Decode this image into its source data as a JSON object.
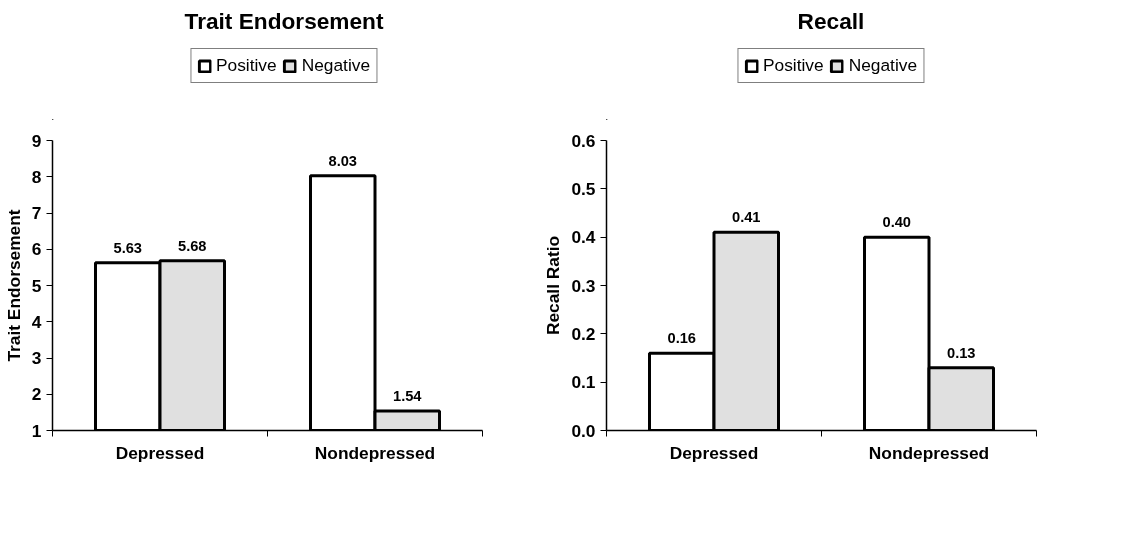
{
  "chart_data": [
    {
      "type": "bar",
      "title": "Trait Endorsement",
      "ylabel": "Trait Endorsement",
      "categories": [
        "Depressed",
        "Nondepressed"
      ],
      "ylim": [
        1,
        9
      ],
      "yticks": [
        1,
        2,
        3,
        4,
        5,
        6,
        7,
        8,
        9
      ],
      "grid": false,
      "legend": "top",
      "series": [
        {
          "name": "Positive",
          "color": "#ffffff",
          "values": [
            5.63,
            8.03
          ],
          "value_labels": [
            "5.63",
            "8.03"
          ]
        },
        {
          "name": "Negative",
          "color": "#e0e0e0",
          "values": [
            5.68,
            1.54
          ],
          "value_labels": [
            "5.68",
            "1.54"
          ]
        }
      ]
    },
    {
      "type": "bar",
      "title": "Recall",
      "ylabel": "Recall Ratio",
      "categories": [
        "Depressed",
        "Nondepressed"
      ],
      "ylim": [
        0,
        0.6
      ],
      "yticks": [
        {
          "value": 0,
          "label": "0.0"
        },
        0.1,
        0.2,
        0.3,
        0.4,
        0.5,
        0.6
      ],
      "grid": false,
      "legend": "top",
      "series": [
        {
          "name": "Positive",
          "color": "#ffffff",
          "values": [
            0.16,
            0.4
          ],
          "value_labels": [
            "0.16",
            "0.40"
          ]
        },
        {
          "name": "Negative",
          "color": "#e0e0e0",
          "values": [
            0.41,
            0.13
          ],
          "value_labels": [
            "0.41",
            "0.13"
          ]
        }
      ]
    }
  ]
}
